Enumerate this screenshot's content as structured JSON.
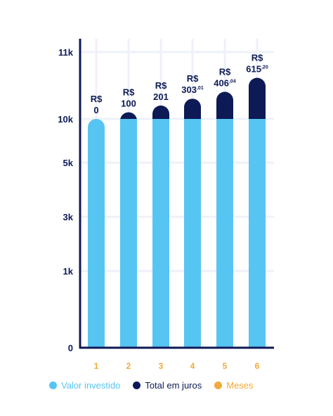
{
  "chart_data": {
    "type": "bar",
    "categories": [
      "1",
      "2",
      "3",
      "4",
      "5",
      "6"
    ],
    "series": [
      {
        "name": "Valor investido",
        "values": [
          10000,
          10000,
          10000,
          10000,
          10000,
          10000
        ]
      },
      {
        "name": "Total em juros",
        "values": [
          0,
          100,
          201,
          303.01,
          406.04,
          615.2
        ]
      }
    ],
    "stacked": true,
    "y_tick_labels": [
      "0",
      "1k",
      "3k",
      "5k",
      "10k",
      "11k"
    ],
    "data_labels": [
      {
        "prefix": "R$",
        "value": "0",
        "cents": ""
      },
      {
        "prefix": "R$",
        "value": "100",
        "cents": ""
      },
      {
        "prefix": "R$",
        "value": "201",
        "cents": ""
      },
      {
        "prefix": "R$",
        "value": "303",
        "cents": ",01"
      },
      {
        "prefix": "R$",
        "value": "406",
        "cents": ",04"
      },
      {
        "prefix": "R$",
        "value": "615",
        "cents": ",20"
      }
    ],
    "legend": [
      {
        "label": "Valor investido",
        "color": "#57c5f2"
      },
      {
        "label": "Total em juros",
        "color": "#0d1a56"
      },
      {
        "label": "Meses",
        "color": "#f2a93b"
      }
    ],
    "legend_position": "bottom",
    "grid": true,
    "colors": {
      "invested": "#57c5f2",
      "interest": "#0d1a56",
      "axis": "#0d1a56",
      "months": "#f2a93b",
      "grid": "#eef1f8"
    }
  }
}
